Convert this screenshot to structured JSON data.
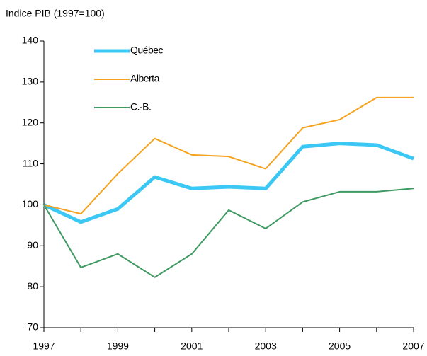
{
  "chart_data": {
    "type": "line",
    "title": "Indice PIB (1997=100)",
    "categories": [
      "1997",
      null,
      "1999",
      null,
      "2001",
      null,
      "2003",
      null,
      "2005",
      null,
      "2007"
    ],
    "series": [
      {
        "name": "Québec",
        "color": "#3cc8f4",
        "width": 5,
        "values": [
          100,
          95.8,
          99,
          106.8,
          104,
          104.4,
          104,
          114.2,
          115,
          114.6,
          111.3
        ]
      },
      {
        "name": "Alberta",
        "color": "#f5a21e",
        "width": 2,
        "values": [
          100,
          97.8,
          107.6,
          116.2,
          112.2,
          111.8,
          108.8,
          118.8,
          120.8,
          126.2,
          126.2
        ]
      },
      {
        "name": "C.-B.",
        "color": "#3e9a62",
        "width": 2,
        "values": [
          100,
          84.7,
          88,
          82.3,
          88,
          98.7,
          94.2,
          100.7,
          103.2,
          103.2,
          104
        ]
      }
    ],
    "ylim": [
      70,
      140
    ],
    "yticks": [
      70,
      80,
      90,
      100,
      110,
      120,
      130,
      140
    ],
    "grid": false,
    "legend": "upper left"
  }
}
